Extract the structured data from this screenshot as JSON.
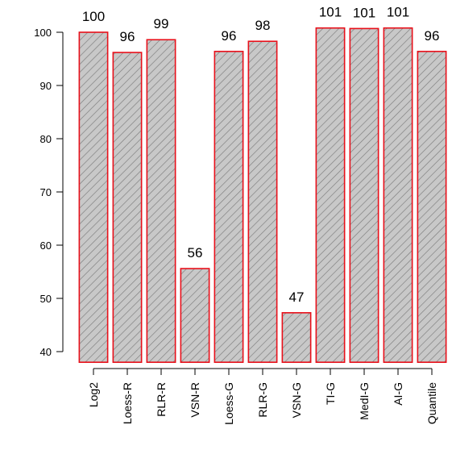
{
  "chart_data": {
    "type": "bar",
    "categories": [
      "Log2",
      "Loess-R",
      "RLR-R",
      "VSN-R",
      "Loess-G",
      "RLR-G",
      "VSN-G",
      "TI-G",
      "MedI-G",
      "AI-G",
      "Quantile"
    ],
    "values": [
      100,
      96.2,
      98.6,
      55.6,
      96.4,
      98.3,
      47.3,
      100.8,
      100.7,
      100.8,
      96.4
    ],
    "data_labels": [
      "100",
      "96",
      "99",
      "56",
      "96",
      "98",
      "47",
      "101",
      "101",
      "101",
      "96"
    ],
    "title": "",
    "xlabel": "",
    "ylabel": "",
    "ylim": [
      38,
      103
    ],
    "yticks": [
      40,
      50,
      60,
      70,
      80,
      90,
      100
    ],
    "ytick_labels": [
      "40",
      "50",
      "60",
      "70",
      "80",
      "90",
      "100"
    ],
    "grid": false,
    "legend": "none",
    "bar_fill": "#c8c8c8",
    "bar_hatch_color": "#7a7a7a",
    "bar_border_color": "#e8101a"
  }
}
